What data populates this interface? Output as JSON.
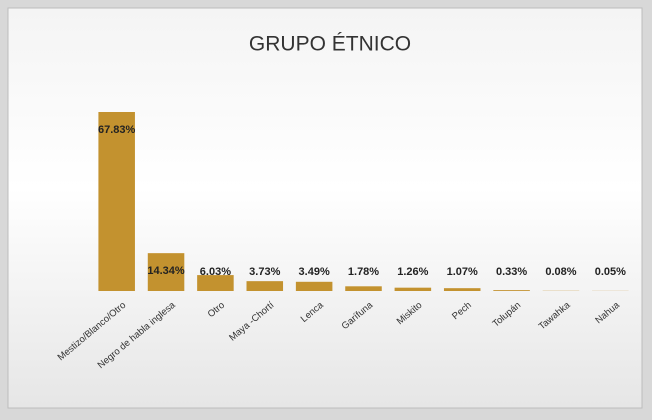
{
  "chart_data": {
    "type": "bar",
    "title": "GRUPO ÉTNICO",
    "categories": [
      "Mestizo/Blanco/Otro",
      "Negro de habla inglesa",
      "Otro",
      "Maya -Chortí",
      "Lenca",
      "Garífuna",
      "Miskito",
      "Pech",
      "Tolupán",
      "Tawahka",
      "Nahua"
    ],
    "values": [
      67.83,
      14.34,
      6.03,
      3.73,
      3.49,
      1.78,
      1.26,
      1.07,
      0.33,
      0.08,
      0.05
    ],
    "value_labels": [
      "67.83%",
      "14.34%",
      "6.03%",
      "3.73%",
      "3.49%",
      "1.78%",
      "1.26%",
      "1.07%",
      "0.33%",
      "0.08%",
      "0.05%"
    ],
    "color": "#c3922f"
  }
}
